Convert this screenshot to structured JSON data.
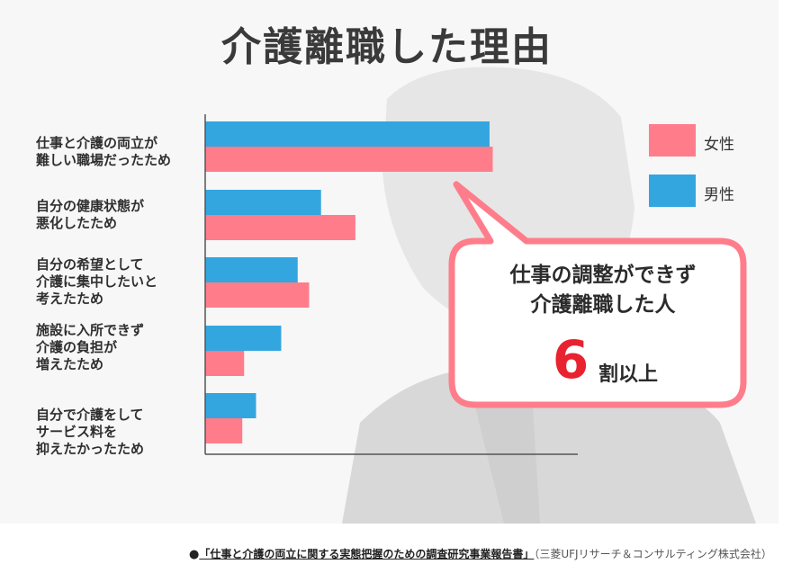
{
  "title": "介護離職した理由",
  "colors": {
    "female": "#ff7d8b",
    "male": "#33a6e0",
    "callout_border": "#ff7d8b",
    "highlight": "#e8232f"
  },
  "chart_data": {
    "type": "bar",
    "orientation": "horizontal",
    "categories": [
      "仕事と介護の両立が\n難しい職場だったため",
      "自分の健康状態が\n悪化したため",
      "自分の希望として\n介護に集中したいと\n考えたため",
      "施設に入所できず\n介護の負担が\n増えたため",
      "自分で介護をして\nサービス料を\n抑えたかったため"
    ],
    "series": [
      {
        "name": "男性",
        "values": [
          62.1,
          25.3,
          20.2,
          16.6,
          11.1
        ]
      },
      {
        "name": "女性",
        "values": [
          62.8,
          32.8,
          22.7,
          8.5,
          8.1
        ]
      }
    ],
    "xlim": [
      0,
      80
    ],
    "grid": false,
    "legend": "top-right",
    "title": "介護離職した理由"
  },
  "legend": {
    "female": "女性",
    "male": "男性"
  },
  "callout": {
    "line1": "仕事の調整ができず",
    "line2": "介護離職した人",
    "number": "6",
    "unit": "割以上"
  },
  "source": {
    "bullet": "●",
    "title": "「仕事と介護の両立に関する実態把握のための調査研究事業報告書」",
    "org": "（三菱UFJリサーチ＆コンサルティング株式会社）"
  }
}
